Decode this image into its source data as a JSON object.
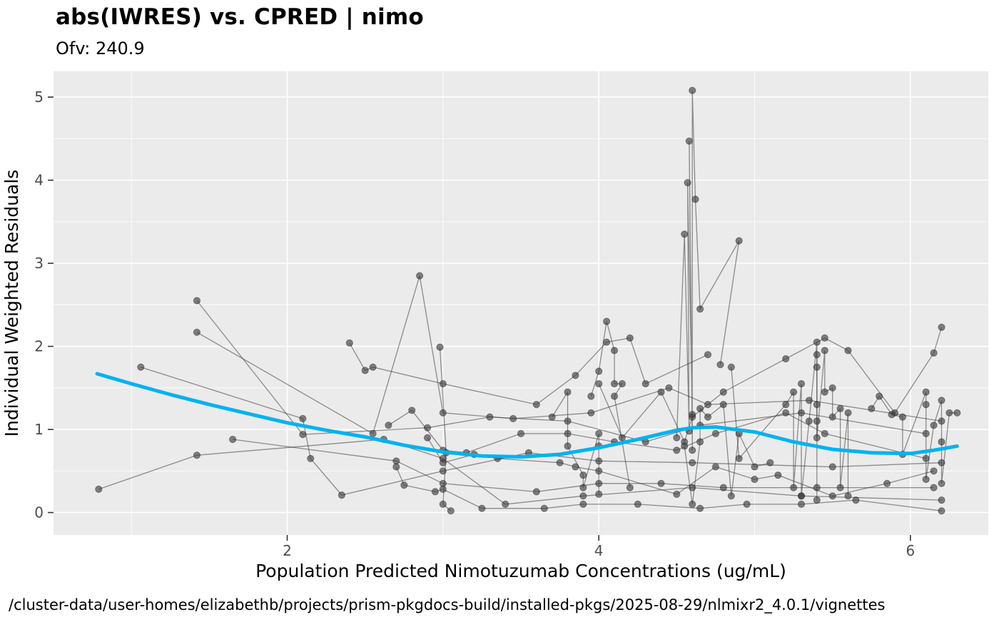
{
  "caption": "/cluster-data/user-homes/elizabethb/projects/prism-pkgdocs-build/installed-pkgs/2025-08-29/nlmixr2_4.0.1/vignettes",
  "chart_data": {
    "type": "scatter",
    "title": "abs(IWRES) vs. CPRED | nimo",
    "subtitle": "Ofv: 240.9",
    "xlabel": "Population Predicted Nimotuzumab Concentrations (ug/mL)",
    "ylabel": "Individual Weighted Residuals",
    "xlim": [
      0.5,
      6.5
    ],
    "ylim": [
      -0.27,
      5.31
    ],
    "x_ticks": [
      2,
      4,
      6
    ],
    "x_minor_ticks": [
      1,
      3,
      5
    ],
    "y_ticks": [
      0,
      1,
      2,
      3,
      4,
      5
    ],
    "y_minor_ticks": [
      0.5,
      1.5,
      2.5,
      3.5,
      4.5
    ],
    "grid": true,
    "legend": "none",
    "panel_bg": "#EBEBEB",
    "grid_color": "#FFFFFF",
    "point_color": "#3A3A3A",
    "point_opacity": 0.62,
    "line_opacity": 0.55,
    "smooth_color": "#00B3F0",
    "traces": [
      [
        [
          0.79,
          0.28
        ],
        [
          1.42,
          0.69
        ],
        [
          2.62,
          0.88
        ],
        [
          3.0,
          0.65
        ],
        [
          3.4,
          0.1
        ],
        [
          3.9,
          0.2
        ],
        [
          4.6,
          0.3
        ],
        [
          5.3,
          0.2
        ],
        [
          6.2,
          0.15
        ]
      ],
      [
        [
          1.06,
          1.75
        ],
        [
          2.1,
          1.13
        ],
        [
          2.15,
          0.65
        ],
        [
          2.35,
          0.21
        ],
        [
          3.0,
          0.5
        ],
        [
          3.55,
          0.72
        ],
        [
          4.0,
          0.62
        ],
        [
          4.6,
          0.6
        ],
        [
          5.5,
          0.55
        ],
        [
          6.2,
          0.6
        ]
      ],
      [
        [
          1.42,
          2.55
        ],
        [
          2.1,
          0.94
        ],
        [
          2.9,
          1.02
        ],
        [
          3.3,
          1.15
        ],
        [
          3.8,
          1.1
        ],
        [
          4.3,
          0.85
        ],
        [
          4.65,
          1.05
        ],
        [
          5.3,
          1.2
        ],
        [
          6.1,
          0.95
        ]
      ],
      [
        [
          1.42,
          2.17
        ],
        [
          2.55,
          0.95
        ],
        [
          2.85,
          2.85
        ],
        [
          3.0,
          1.2
        ],
        [
          3.45,
          1.13
        ],
        [
          3.95,
          1.2
        ],
        [
          4.45,
          1.5
        ],
        [
          4.7,
          1.3
        ],
        [
          5.35,
          1.35
        ],
        [
          6.2,
          1.1
        ]
      ],
      [
        [
          1.65,
          0.88
        ],
        [
          2.7,
          0.62
        ],
        [
          3.0,
          0.35
        ],
        [
          3.6,
          0.25
        ],
        [
          4.0,
          0.35
        ],
        [
          4.4,
          0.35
        ],
        [
          4.8,
          0.3
        ],
        [
          5.4,
          0.3
        ],
        [
          6.15,
          0.3
        ]
      ],
      [
        [
          2.4,
          2.04
        ],
        [
          2.5,
          1.71
        ],
        [
          2.55,
          1.75
        ],
        [
          3.0,
          1.55
        ],
        [
          3.6,
          1.3
        ],
        [
          3.85,
          1.65
        ],
        [
          4.05,
          2.05
        ],
        [
          4.2,
          2.1
        ],
        [
          4.3,
          1.55
        ],
        [
          4.7,
          1.9
        ]
      ],
      [
        [
          2.65,
          1.05
        ],
        [
          2.8,
          1.23
        ],
        [
          3.0,
          0.75
        ],
        [
          3.15,
          0.72
        ],
        [
          3.5,
          0.95
        ],
        [
          3.8,
          0.95
        ],
        [
          4.1,
          0.85
        ],
        [
          4.5,
          0.75
        ],
        [
          4.75,
          0.95
        ],
        [
          5.2,
          1.2
        ],
        [
          5.45,
          0.95
        ],
        [
          6.1,
          0.65
        ]
      ],
      [
        [
          2.7,
          0.55
        ],
        [
          2.75,
          0.33
        ],
        [
          2.95,
          0.25
        ],
        [
          3.0,
          0.28
        ],
        [
          3.25,
          0.05
        ],
        [
          3.65,
          0.05
        ],
        [
          3.9,
          0.1
        ],
        [
          4.25,
          0.1
        ],
        [
          4.65,
          0.05
        ],
        [
          4.95,
          0.1
        ],
        [
          5.3,
          0.1
        ],
        [
          5.65,
          0.15
        ],
        [
          6.2,
          0.02
        ]
      ],
      [
        [
          2.9,
          0.9
        ],
        [
          3.0,
          0.6
        ],
        [
          3.2,
          0.7
        ],
        [
          3.35,
          0.65
        ],
        [
          3.75,
          0.6
        ],
        [
          3.85,
          0.55
        ],
        [
          4.0,
          0.5
        ],
        [
          4.5,
          0.22
        ],
        [
          4.75,
          0.55
        ],
        [
          5.0,
          0.4
        ],
        [
          5.15,
          0.45
        ],
        [
          5.5,
          0.2
        ],
        [
          5.85,
          0.35
        ],
        [
          6.15,
          0.5
        ]
      ],
      [
        [
          2.98,
          1.99
        ],
        [
          3.02,
          0.72
        ],
        [
          3.0,
          0.1
        ],
        [
          3.05,
          0.02
        ]
      ],
      [
        [
          3.7,
          1.15
        ],
        [
          3.8,
          1.45
        ],
        [
          3.8,
          0.8
        ],
        [
          3.9,
          0.45
        ],
        [
          3.9,
          0.3
        ],
        [
          4.0,
          0.95
        ],
        [
          4.0,
          0.8
        ],
        [
          4.0,
          0.22
        ]
      ],
      [
        [
          3.95,
          1.4
        ],
        [
          4.0,
          1.7
        ],
        [
          4.05,
          2.3
        ],
        [
          4.1,
          1.95
        ],
        [
          4.1,
          1.55
        ],
        [
          4.15,
          1.55
        ],
        [
          4.1,
          1.4
        ],
        [
          4.2,
          0.3
        ]
      ],
      [
        [
          4.0,
          1.55
        ],
        [
          4.15,
          0.9
        ],
        [
          4.4,
          1.45
        ],
        [
          4.55,
          0.85
        ],
        [
          4.6,
          1.15
        ],
        [
          4.8,
          1.45
        ],
        [
          5.2,
          1.85
        ],
        [
          5.45,
          2.1
        ],
        [
          5.6,
          1.95
        ],
        [
          5.9,
          1.2
        ],
        [
          6.15,
          1.92
        ],
        [
          6.2,
          2.23
        ]
      ],
      [
        [
          4.5,
          0.9
        ],
        [
          4.55,
          3.35
        ],
        [
          4.58,
          0.98
        ],
        [
          4.57,
          3.97
        ],
        [
          4.6,
          1.18
        ],
        [
          4.58,
          4.47
        ],
        [
          4.6,
          0.75
        ],
        [
          4.6,
          5.08
        ],
        [
          4.62,
          3.77
        ],
        [
          4.65,
          2.45
        ],
        [
          4.9,
          3.27
        ],
        [
          4.78,
          1.78
        ]
      ],
      [
        [
          4.55,
          0.8
        ],
        [
          4.6,
          0.1
        ],
        [
          4.65,
          0.85
        ],
        [
          4.65,
          1.25
        ],
        [
          4.7,
          1.15
        ],
        [
          4.8,
          1.3
        ],
        [
          4.85,
          0.2
        ],
        [
          4.9,
          0.95
        ],
        [
          5.0,
          0.55
        ],
        [
          5.1,
          0.6
        ]
      ],
      [
        [
          4.85,
          1.75
        ],
        [
          4.9,
          0.65
        ],
        [
          5.2,
          1.3
        ],
        [
          5.25,
          1.45
        ],
        [
          5.25,
          0.3
        ],
        [
          5.3,
          1.55
        ],
        [
          5.3,
          0.2
        ],
        [
          5.35,
          1.1
        ],
        [
          5.4,
          2.05
        ],
        [
          5.4,
          0.15
        ]
      ],
      [
        [
          5.4,
          1.9
        ],
        [
          5.4,
          1.75
        ],
        [
          5.4,
          1.3
        ],
        [
          5.4,
          1.1
        ],
        [
          5.4,
          0.9
        ],
        [
          5.45,
          1.95
        ],
        [
          5.45,
          1.45
        ],
        [
          5.5,
          1.5
        ],
        [
          5.5,
          1.15
        ],
        [
          5.55,
          1.25
        ],
        [
          5.55,
          0.3
        ],
        [
          5.6,
          1.2
        ],
        [
          5.6,
          0.2
        ]
      ],
      [
        [
          5.75,
          1.25
        ],
        [
          5.8,
          1.4
        ],
        [
          5.88,
          1.18
        ],
        [
          5.95,
          1.15
        ],
        [
          5.95,
          0.7
        ],
        [
          6.1,
          1.45
        ],
        [
          6.1,
          1.3
        ],
        [
          6.1,
          0.4
        ],
        [
          6.15,
          1.05
        ],
        [
          6.2,
          1.35
        ],
        [
          6.2,
          0.85
        ],
        [
          6.2,
          0.35
        ],
        [
          6.25,
          1.2
        ],
        [
          6.3,
          1.2
        ]
      ]
    ],
    "smooth": [
      [
        0.78,
        1.67
      ],
      [
        1.0,
        1.55
      ],
      [
        1.25,
        1.42
      ],
      [
        1.5,
        1.3
      ],
      [
        1.75,
        1.19
      ],
      [
        2.0,
        1.08
      ],
      [
        2.25,
        0.99
      ],
      [
        2.5,
        0.91
      ],
      [
        2.75,
        0.81
      ],
      [
        3.0,
        0.73
      ],
      [
        3.25,
        0.68
      ],
      [
        3.5,
        0.67
      ],
      [
        3.75,
        0.7
      ],
      [
        4.0,
        0.78
      ],
      [
        4.25,
        0.88
      ],
      [
        4.5,
        0.99
      ],
      [
        4.6,
        1.02
      ],
      [
        4.75,
        1.03
      ],
      [
        5.0,
        0.97
      ],
      [
        5.25,
        0.85
      ],
      [
        5.5,
        0.76
      ],
      [
        5.75,
        0.72
      ],
      [
        6.0,
        0.71
      ],
      [
        6.15,
        0.75
      ],
      [
        6.3,
        0.8
      ]
    ]
  }
}
